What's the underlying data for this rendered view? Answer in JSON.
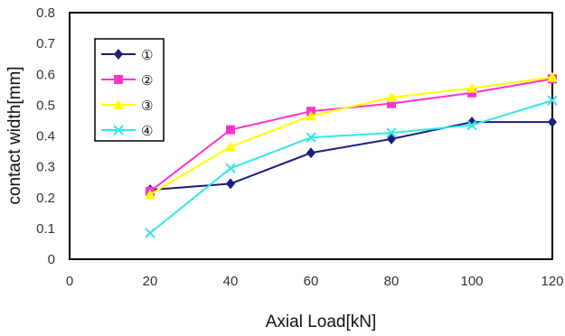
{
  "chart_data": {
    "type": "line",
    "title": "",
    "xlabel": "Axial Load[kN]",
    "ylabel": "contact width[mm]",
    "xlim": [
      0,
      120
    ],
    "ylim": [
      0,
      0.8
    ],
    "x_ticks": [
      "0",
      "20",
      "40",
      "60",
      "80",
      "100",
      "120"
    ],
    "y_ticks": [
      "0",
      "0.1",
      "0.2",
      "0.3",
      "0.4",
      "0.5",
      "0.6",
      "0.7",
      "0.8"
    ],
    "x": [
      20,
      40,
      60,
      80,
      100,
      120
    ],
    "grid": false,
    "legend_position": "top-left",
    "series": [
      {
        "name": "①",
        "color": "#1a1f7a",
        "marker": "diamond",
        "values": [
          0.225,
          0.245,
          0.345,
          0.39,
          0.445,
          0.445
        ]
      },
      {
        "name": "②",
        "color": "#ff33cc",
        "marker": "square",
        "values": [
          0.22,
          0.42,
          0.48,
          0.505,
          0.54,
          0.585
        ]
      },
      {
        "name": "③",
        "color": "#ffff00",
        "marker": "triangle",
        "values": [
          0.21,
          0.365,
          0.465,
          0.525,
          0.555,
          0.59
        ]
      },
      {
        "name": "④",
        "color": "#33e6e6",
        "marker": "x",
        "values": [
          0.085,
          0.295,
          0.395,
          0.41,
          0.435,
          0.515
        ]
      }
    ]
  }
}
